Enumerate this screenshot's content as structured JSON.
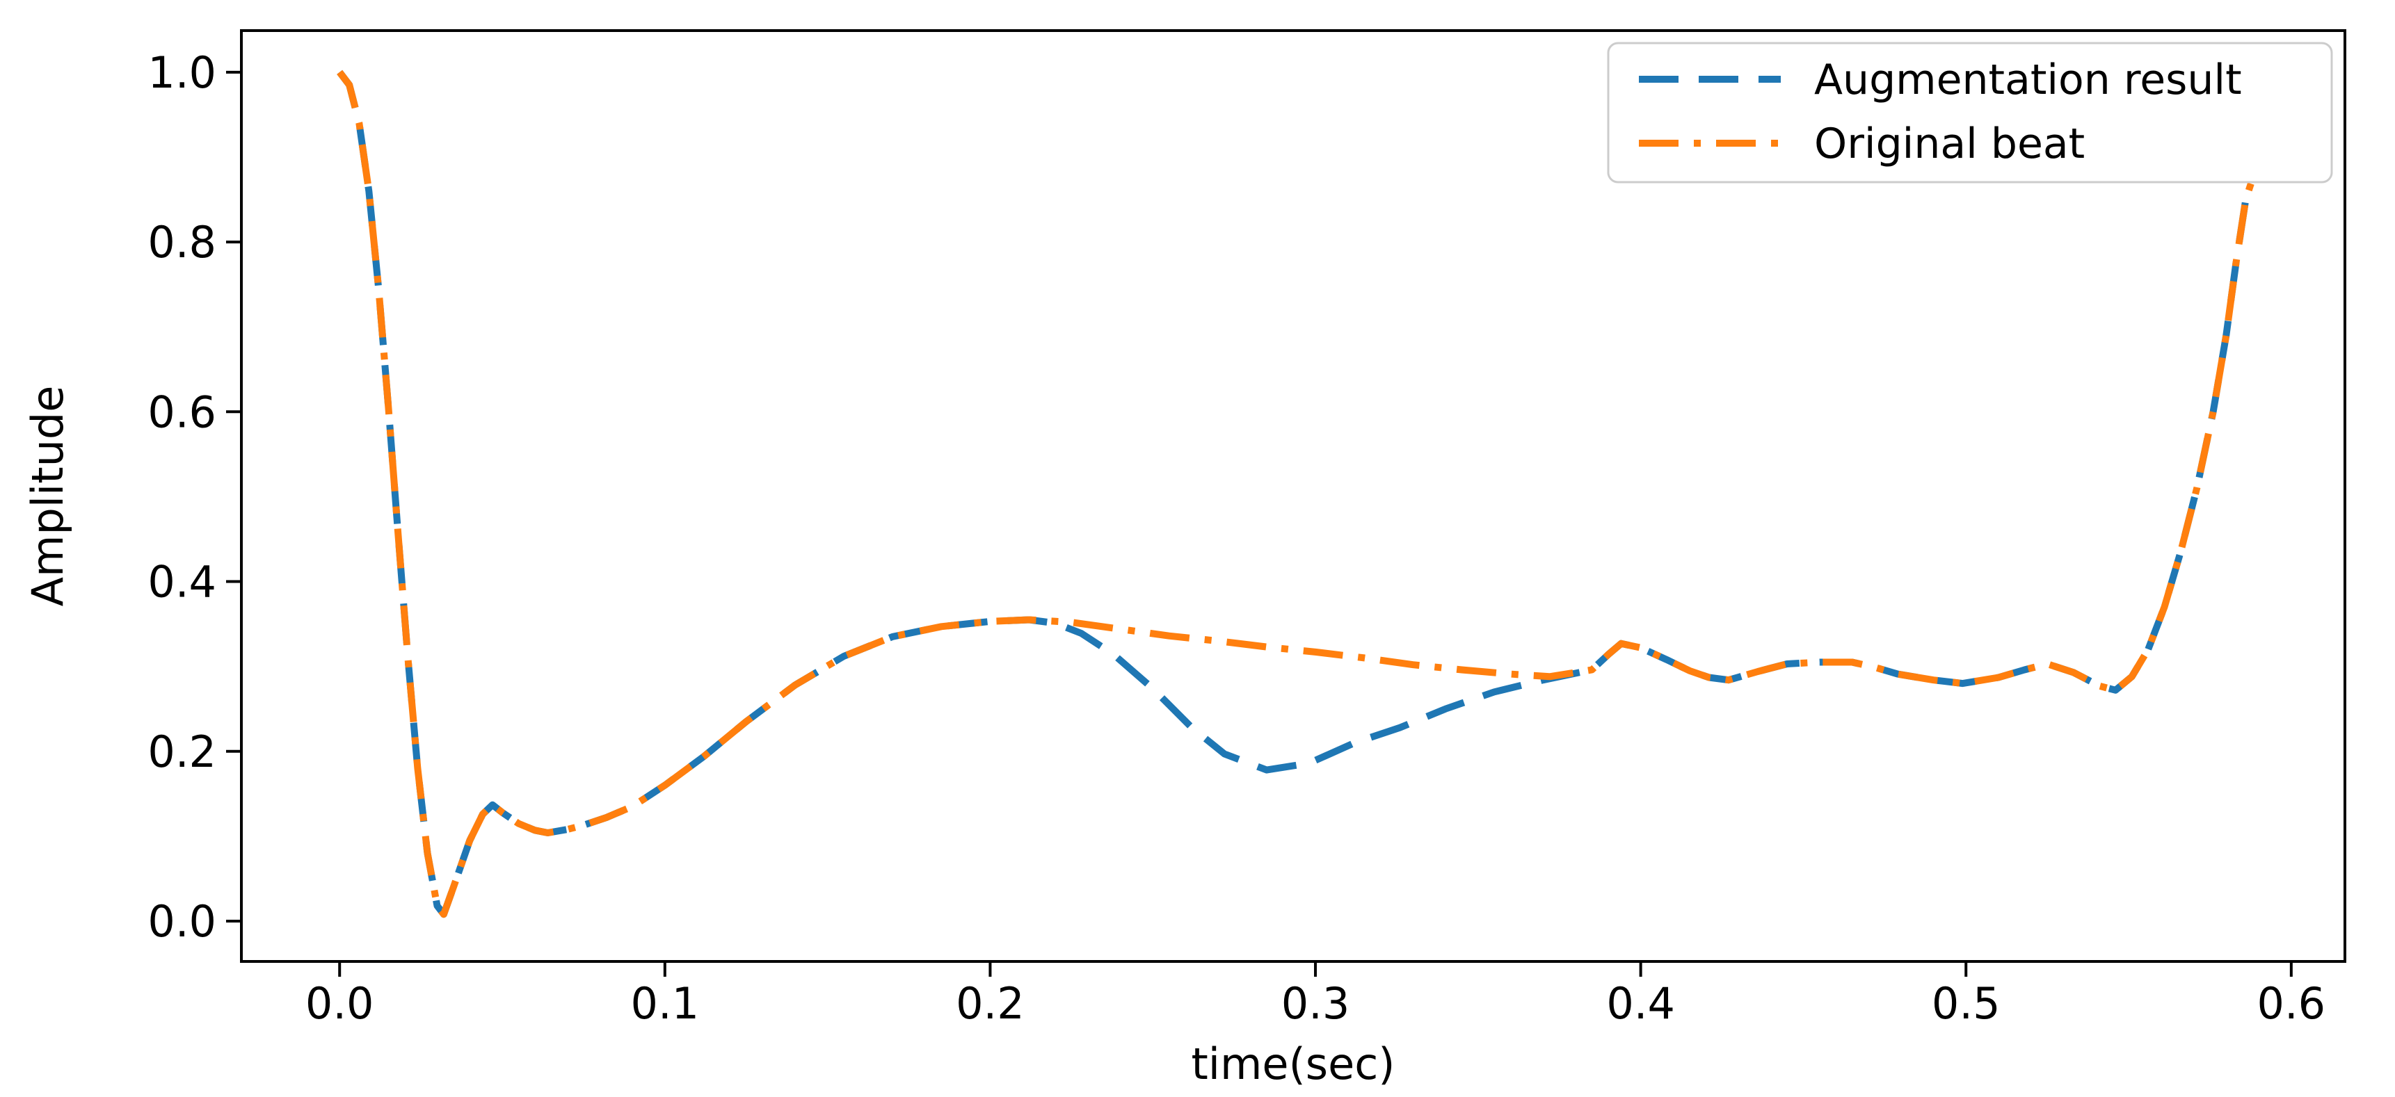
{
  "figure": {
    "background": "#ffffff",
    "spine_color": "#000000",
    "text_color": "#000000",
    "legend_border_color": "#cccccc"
  },
  "chart_data": {
    "type": "line",
    "title": "",
    "xlabel": "time(sec)",
    "ylabel": "Amplitude",
    "xlim": [
      -0.0302,
      0.6165
    ],
    "ylim": [
      -0.0475,
      1.049
    ],
    "grid": false,
    "x_tick_values": [
      0.0,
      0.1,
      0.2,
      0.3,
      0.4,
      0.5,
      0.6
    ],
    "x_tick_labels": [
      "0.0",
      "0.1",
      "0.2",
      "0.3",
      "0.4",
      "0.5",
      "0.6"
    ],
    "y_tick_values": [
      0.0,
      0.2,
      0.4,
      0.6,
      0.8,
      1.0
    ],
    "y_tick_labels": [
      "0.0",
      "0.2",
      "0.4",
      "0.6",
      "0.8",
      "1.0"
    ],
    "legend": {
      "position": "upper right",
      "entries": [
        {
          "label": "Augmentation result",
          "color": "#1f77b4",
          "linestyle": "dashed"
        },
        {
          "label": "Original beat",
          "color": "#ff7f0e",
          "linestyle": "dashdot"
        }
      ]
    },
    "series": [
      {
        "name": "Augmentation result",
        "color": "#1f77b4",
        "linestyle": "dashed",
        "points": [
          [
            0.0,
            1.0
          ],
          [
            0.003,
            0.985
          ],
          [
            0.006,
            0.94
          ],
          [
            0.009,
            0.86
          ],
          [
            0.012,
            0.745
          ],
          [
            0.015,
            0.605
          ],
          [
            0.018,
            0.455
          ],
          [
            0.021,
            0.31
          ],
          [
            0.024,
            0.18
          ],
          [
            0.027,
            0.08
          ],
          [
            0.03,
            0.018
          ],
          [
            0.032,
            0.008
          ],
          [
            0.035,
            0.04
          ],
          [
            0.04,
            0.095
          ],
          [
            0.044,
            0.126
          ],
          [
            0.047,
            0.137
          ],
          [
            0.05,
            0.128
          ],
          [
            0.055,
            0.115
          ],
          [
            0.06,
            0.107
          ],
          [
            0.064,
            0.104
          ],
          [
            0.07,
            0.108
          ],
          [
            0.075,
            0.113
          ],
          [
            0.082,
            0.122
          ],
          [
            0.09,
            0.135
          ],
          [
            0.1,
            0.16
          ],
          [
            0.112,
            0.194
          ],
          [
            0.125,
            0.235
          ],
          [
            0.14,
            0.278
          ],
          [
            0.155,
            0.312
          ],
          [
            0.17,
            0.335
          ],
          [
            0.185,
            0.347
          ],
          [
            0.2,
            0.353
          ],
          [
            0.212,
            0.355
          ],
          [
            0.22,
            0.351
          ],
          [
            0.228,
            0.339
          ],
          [
            0.238,
            0.314
          ],
          [
            0.25,
            0.274
          ],
          [
            0.262,
            0.228
          ],
          [
            0.272,
            0.197
          ],
          [
            0.285,
            0.178
          ],
          [
            0.298,
            0.186
          ],
          [
            0.312,
            0.21
          ],
          [
            0.326,
            0.228
          ],
          [
            0.34,
            0.25
          ],
          [
            0.355,
            0.27
          ],
          [
            0.37,
            0.284
          ],
          [
            0.385,
            0.296
          ],
          [
            0.39,
            0.314
          ],
          [
            0.394,
            0.327
          ],
          [
            0.4,
            0.322
          ],
          [
            0.408,
            0.308
          ],
          [
            0.415,
            0.295
          ],
          [
            0.421,
            0.287
          ],
          [
            0.427,
            0.284
          ],
          [
            0.436,
            0.294
          ],
          [
            0.445,
            0.303
          ],
          [
            0.455,
            0.305
          ],
          [
            0.465,
            0.305
          ],
          [
            0.472,
            0.299
          ],
          [
            0.479,
            0.291
          ],
          [
            0.49,
            0.284
          ],
          [
            0.499,
            0.28
          ],
          [
            0.51,
            0.287
          ],
          [
            0.518,
            0.296
          ],
          [
            0.525,
            0.303
          ],
          [
            0.533,
            0.293
          ],
          [
            0.541,
            0.277
          ],
          [
            0.546,
            0.272
          ],
          [
            0.551,
            0.288
          ],
          [
            0.556,
            0.32
          ],
          [
            0.561,
            0.37
          ],
          [
            0.566,
            0.435
          ],
          [
            0.571,
            0.51
          ],
          [
            0.576,
            0.6
          ],
          [
            0.58,
            0.69
          ],
          [
            0.583,
            0.775
          ],
          [
            0.586,
            0.85
          ]
        ]
      },
      {
        "name": "Original beat",
        "color": "#ff7f0e",
        "linestyle": "dashdot",
        "points": [
          [
            0.0,
            1.0
          ],
          [
            0.003,
            0.985
          ],
          [
            0.006,
            0.94
          ],
          [
            0.009,
            0.86
          ],
          [
            0.012,
            0.745
          ],
          [
            0.015,
            0.605
          ],
          [
            0.018,
            0.455
          ],
          [
            0.021,
            0.31
          ],
          [
            0.024,
            0.18
          ],
          [
            0.027,
            0.08
          ],
          [
            0.03,
            0.018
          ],
          [
            0.032,
            0.008
          ],
          [
            0.035,
            0.04
          ],
          [
            0.04,
            0.095
          ],
          [
            0.044,
            0.126
          ],
          [
            0.047,
            0.137
          ],
          [
            0.05,
            0.128
          ],
          [
            0.055,
            0.115
          ],
          [
            0.06,
            0.107
          ],
          [
            0.064,
            0.104
          ],
          [
            0.07,
            0.108
          ],
          [
            0.075,
            0.113
          ],
          [
            0.082,
            0.122
          ],
          [
            0.09,
            0.135
          ],
          [
            0.1,
            0.16
          ],
          [
            0.112,
            0.194
          ],
          [
            0.125,
            0.235
          ],
          [
            0.14,
            0.278
          ],
          [
            0.155,
            0.312
          ],
          [
            0.17,
            0.335
          ],
          [
            0.185,
            0.347
          ],
          [
            0.2,
            0.353
          ],
          [
            0.212,
            0.355
          ],
          [
            0.225,
            0.352
          ],
          [
            0.24,
            0.344
          ],
          [
            0.255,
            0.336
          ],
          [
            0.27,
            0.33
          ],
          [
            0.285,
            0.323
          ],
          [
            0.3,
            0.317
          ],
          [
            0.315,
            0.31
          ],
          [
            0.33,
            0.302
          ],
          [
            0.345,
            0.296
          ],
          [
            0.36,
            0.291
          ],
          [
            0.372,
            0.288
          ],
          [
            0.385,
            0.296
          ],
          [
            0.39,
            0.314
          ],
          [
            0.394,
            0.327
          ],
          [
            0.4,
            0.322
          ],
          [
            0.408,
            0.308
          ],
          [
            0.415,
            0.295
          ],
          [
            0.421,
            0.287
          ],
          [
            0.427,
            0.284
          ],
          [
            0.436,
            0.294
          ],
          [
            0.445,
            0.303
          ],
          [
            0.455,
            0.305
          ],
          [
            0.465,
            0.305
          ],
          [
            0.472,
            0.299
          ],
          [
            0.479,
            0.291
          ],
          [
            0.49,
            0.284
          ],
          [
            0.499,
            0.28
          ],
          [
            0.51,
            0.287
          ],
          [
            0.518,
            0.296
          ],
          [
            0.525,
            0.303
          ],
          [
            0.533,
            0.293
          ],
          [
            0.541,
            0.277
          ],
          [
            0.546,
            0.272
          ],
          [
            0.551,
            0.288
          ],
          [
            0.556,
            0.32
          ],
          [
            0.561,
            0.37
          ],
          [
            0.566,
            0.435
          ],
          [
            0.571,
            0.51
          ],
          [
            0.576,
            0.6
          ],
          [
            0.58,
            0.69
          ],
          [
            0.583,
            0.775
          ],
          [
            0.586,
            0.85
          ],
          [
            0.589,
            0.885
          ]
        ]
      }
    ]
  }
}
